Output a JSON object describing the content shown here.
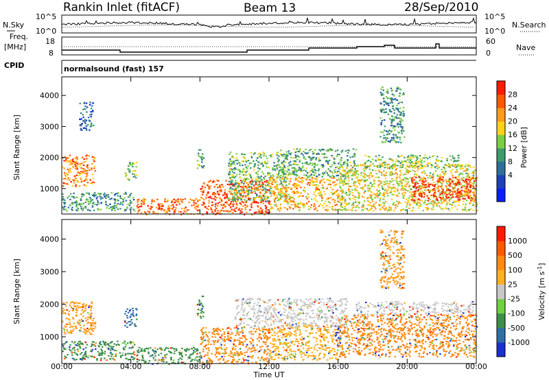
{
  "header": {
    "station": "Rankin Inlet (fitACF)",
    "beam": "Beam 13",
    "date": "28/Sep/2010"
  },
  "top_panels": {
    "nsky_label": "N.Sky",
    "nsearch_label": "N.Search",
    "freq_label_1": "Freq.",
    "freq_label_2": "[MHz]",
    "nave_label": "Nave",
    "cpid_label": "CPID",
    "mode_text": "normalsound (fast) 157",
    "noise_ticks": [
      "10^5",
      "10^0"
    ],
    "noise_ticks_right": [
      "10^5",
      "10^0"
    ],
    "freq_ticks": [
      "18",
      "8"
    ],
    "nave_ticks": [
      "60",
      "0"
    ]
  },
  "chart_data": [
    {
      "type": "heatmap",
      "name": "power",
      "xlabel": "Time UT",
      "ylabel": "Slant Range [km]",
      "x_ticks": [
        "00:00",
        "04:00",
        "08:00",
        "12:00",
        "16:00",
        "20:00",
        "00:00"
      ],
      "y_ticks": [
        1000,
        2000,
        3000,
        4000
      ],
      "xlim": [
        0,
        24
      ],
      "ylim": [
        180,
        4600
      ],
      "colorbar": {
        "label": "Power [dB]",
        "ticks": [
          "28",
          "24",
          "20",
          "16",
          "12",
          "8",
          "4"
        ],
        "colors": [
          "#0a1eff",
          "#1b40b8",
          "#2f6f9a",
          "#3e9b6a",
          "#7ccf42",
          "#ffd21a",
          "#ff9a1a",
          "#ff5a00",
          "#ff1a00"
        ]
      },
      "regions": [
        {
          "t0": 0.0,
          "t1": 1.9,
          "r0": 1100,
          "r1": 2100,
          "intensity": 0.8
        },
        {
          "t0": 0.0,
          "t1": 4.2,
          "r0": 300,
          "r1": 900,
          "intensity": 0.35
        },
        {
          "t0": 3.6,
          "t1": 4.3,
          "r0": 1300,
          "r1": 1900,
          "intensity": 0.5
        },
        {
          "t0": 4.3,
          "t1": 8.0,
          "r0": 180,
          "r1": 700,
          "intensity": 0.85
        },
        {
          "t0": 7.8,
          "t1": 8.2,
          "r0": 1600,
          "r1": 2300,
          "intensity": 0.4
        },
        {
          "t0": 8.0,
          "t1": 12.0,
          "r0": 180,
          "r1": 1300,
          "intensity": 0.9
        },
        {
          "t0": 9.6,
          "t1": 13.0,
          "r0": 600,
          "r1": 2200,
          "intensity": 0.45
        },
        {
          "t0": 12.0,
          "t1": 16.0,
          "r0": 300,
          "r1": 1400,
          "intensity": 0.7
        },
        {
          "t0": 12.5,
          "t1": 17.0,
          "r0": 1400,
          "r1": 2300,
          "intensity": 0.4
        },
        {
          "t0": 16.0,
          "t1": 24.0,
          "r0": 300,
          "r1": 1800,
          "intensity": 0.6
        },
        {
          "t0": 20.2,
          "t1": 24.0,
          "r0": 600,
          "r1": 1400,
          "intensity": 0.95
        },
        {
          "t0": 17.5,
          "t1": 23.0,
          "r0": 1700,
          "r1": 2100,
          "intensity": 0.5
        },
        {
          "t0": 18.4,
          "t1": 19.8,
          "r0": 2500,
          "r1": 4300,
          "intensity": 0.35
        },
        {
          "t0": 1.0,
          "t1": 1.8,
          "r0": 2900,
          "r1": 3800,
          "intensity": 0.2
        }
      ]
    },
    {
      "type": "heatmap",
      "name": "velocity",
      "xlabel": "Time UT",
      "ylabel": "Slant Range [km]",
      "x_ticks": [
        "00:00",
        "04:00",
        "08:00",
        "12:00",
        "16:00",
        "20:00",
        "00:00"
      ],
      "y_ticks": [
        1000,
        2000,
        3000,
        4000
      ],
      "xlim": [
        0,
        24
      ],
      "ylim": [
        180,
        4600
      ],
      "colorbar": {
        "label": "Velocity [m s-1]",
        "label_main": "Velocity",
        "label_unit": "[m s",
        "label_exp": "-1",
        "label_end": "]",
        "ticks": [
          "1000",
          "500",
          "100",
          "25",
          "-25",
          "-100",
          "-500",
          "-1000"
        ],
        "colors": [
          "#1a2fd0",
          "#2e6fa8",
          "#3e8f4a",
          "#6fd040",
          "#c8c8c8",
          "#ffb020",
          "#ff8a10",
          "#ff5a00",
          "#ff1a00"
        ]
      },
      "regions": [
        {
          "t0": 0.0,
          "t1": 1.9,
          "r0": 1100,
          "r1": 2100,
          "v": "#ff9a1a"
        },
        {
          "t0": 0.0,
          "t1": 4.2,
          "r0": 300,
          "r1": 900,
          "v": "#3e8f4a"
        },
        {
          "t0": 3.6,
          "t1": 4.3,
          "r0": 1300,
          "r1": 1900,
          "v": "#2e6fa8"
        },
        {
          "t0": 4.3,
          "t1": 8.0,
          "r0": 180,
          "r1": 700,
          "v": "#3e8f4a"
        },
        {
          "t0": 7.8,
          "t1": 8.2,
          "r0": 1600,
          "r1": 2300,
          "v": "#3e8f4a"
        },
        {
          "t0": 8.0,
          "t1": 12.0,
          "r0": 180,
          "r1": 1300,
          "v": "#ff8a10"
        },
        {
          "t0": 12.0,
          "t1": 16.0,
          "r0": 300,
          "r1": 1400,
          "v": "#ffb020"
        },
        {
          "t0": 15.8,
          "t1": 16.1,
          "r0": 700,
          "r1": 1400,
          "v": "#1a2fd0"
        },
        {
          "t0": 16.0,
          "t1": 24.0,
          "r0": 400,
          "r1": 1700,
          "v": "#ff8a10"
        },
        {
          "t0": 17.0,
          "t1": 23.8,
          "r0": 1700,
          "r1": 2100,
          "v": "#c8c8c8"
        },
        {
          "t0": 10.0,
          "t1": 16.5,
          "r0": 1300,
          "r1": 2200,
          "v": "#c8c8c8"
        },
        {
          "t0": 18.4,
          "t1": 19.8,
          "r0": 2500,
          "r1": 4300,
          "v": "#ff9a1a"
        }
      ]
    }
  ]
}
